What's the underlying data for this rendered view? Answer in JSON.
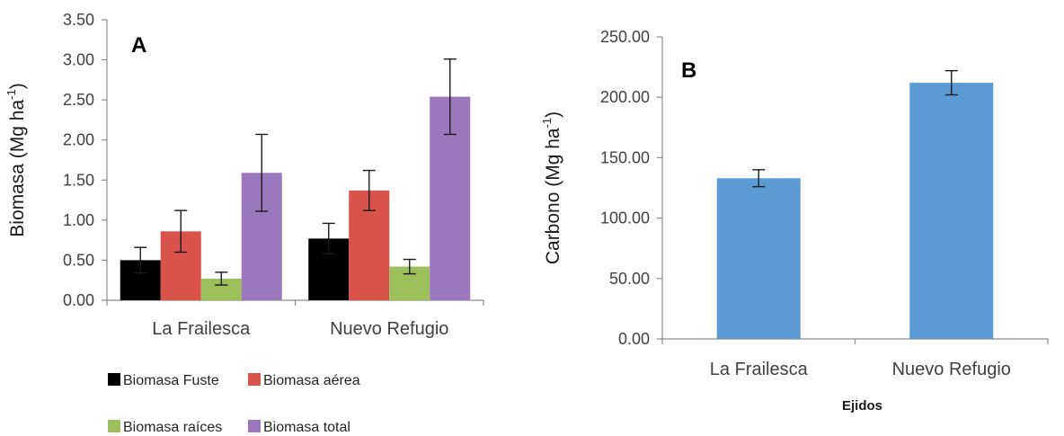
{
  "chart_data": [
    {
      "type": "bar",
      "panel_label": "A",
      "categories": [
        "La Frailesca",
        "Nuevo Refugio"
      ],
      "ylabel": "Biomasa (Mg ha",
      "ylabel_sup": "-1",
      "ylabel_close": ")",
      "ylim": [
        0,
        3.5
      ],
      "yticks": [
        "0.00",
        "0.50",
        "1.00",
        "1.50",
        "2.00",
        "2.50",
        "3.00",
        "3.50"
      ],
      "grid": false,
      "legend_position": "bottom",
      "series": [
        {
          "name": "Biomasa Fuste",
          "color": "#000000",
          "values": [
            0.5,
            0.77
          ],
          "errors": [
            0.16,
            0.19
          ]
        },
        {
          "name": "Biomasa aérea",
          "color": "#d9534a",
          "values": [
            0.86,
            1.37
          ],
          "errors": [
            0.26,
            0.25
          ]
        },
        {
          "name": "Biomasa raíces",
          "color": "#9bbf5a",
          "values": [
            0.27,
            0.42
          ],
          "errors": [
            0.08,
            0.09
          ]
        },
        {
          "name": "Biomasa total",
          "color": "#9b77bd",
          "values": [
            1.59,
            2.54
          ],
          "errors": [
            0.48,
            0.47
          ]
        }
      ]
    },
    {
      "type": "bar",
      "panel_label": "B",
      "categories": [
        "La Frailesca",
        "Nuevo Refugio"
      ],
      "xlabel": "Ejidos",
      "ylabel": "Carbono (Mg ha",
      "ylabel_sup": "-1",
      "ylabel_close": ")",
      "ylim": [
        0,
        250
      ],
      "yticks": [
        "0.00",
        "50.00",
        "100.00",
        "150.00",
        "200.00",
        "250.00"
      ],
      "grid": false,
      "series": [
        {
          "color": "#5b9bd5",
          "values": [
            133,
            212
          ],
          "errors": [
            7,
            10
          ]
        }
      ]
    }
  ]
}
